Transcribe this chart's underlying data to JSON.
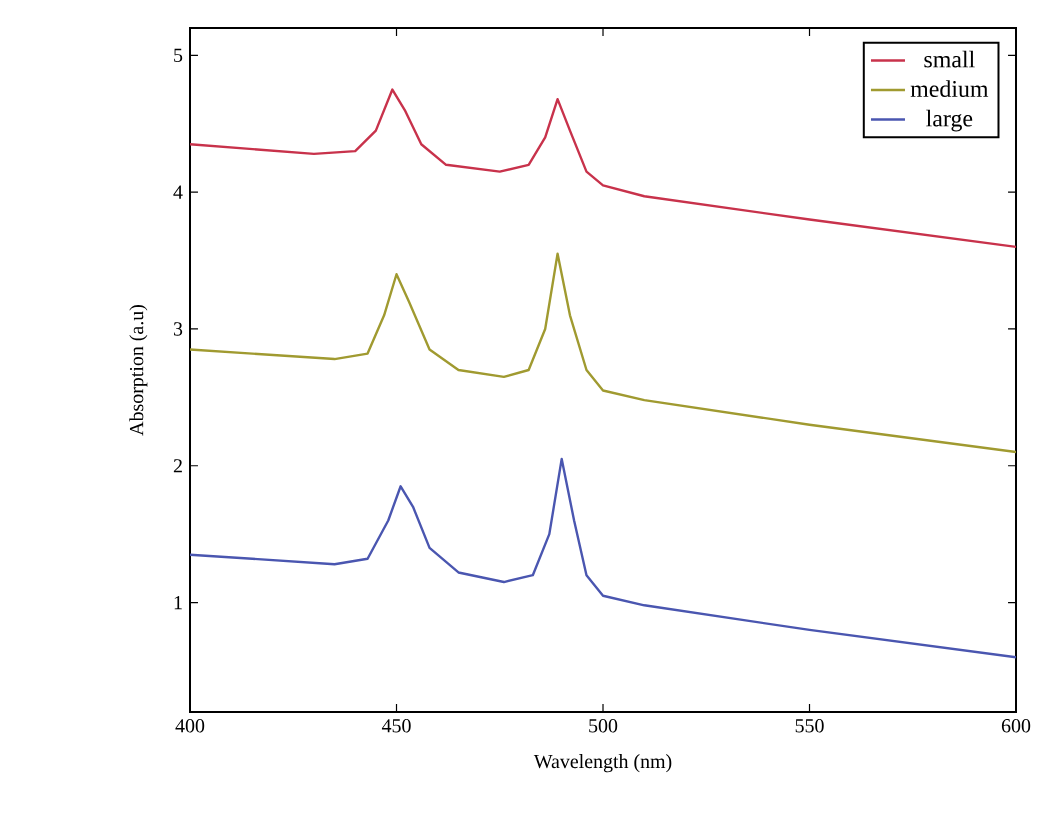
{
  "chart_data": {
    "type": "line",
    "xlabel": "Wavelength  (nm)",
    "ylabel": "Absorption (a.u)",
    "xlim": [
      400,
      600
    ],
    "ylim": [
      0.2,
      5.2
    ],
    "xticks": [
      400,
      450,
      500,
      550,
      600
    ],
    "yticks": [
      1,
      2,
      3,
      4,
      5
    ],
    "legend": "top right",
    "grid": false,
    "marker": "none",
    "line_style": "solid",
    "series": [
      {
        "name": "small",
        "color": "#c8324b",
        "x": [
          400,
          430,
          440,
          445,
          449,
          452,
          456,
          462,
          475,
          482,
          486,
          489,
          492,
          496,
          500,
          510,
          550,
          600
        ],
        "values": [
          4.35,
          4.28,
          4.3,
          4.45,
          4.75,
          4.6,
          4.35,
          4.2,
          4.15,
          4.2,
          4.4,
          4.68,
          4.45,
          4.15,
          4.05,
          3.97,
          3.8,
          3.6
        ]
      },
      {
        "name": "medium",
        "color": "#a09a30",
        "x": [
          400,
          435,
          443,
          447,
          450,
          453,
          458,
          465,
          476,
          482,
          486,
          489,
          492,
          496,
          500,
          510,
          550,
          600
        ],
        "values": [
          2.85,
          2.78,
          2.82,
          3.1,
          3.4,
          3.2,
          2.85,
          2.7,
          2.65,
          2.7,
          3.0,
          3.55,
          3.1,
          2.7,
          2.55,
          2.48,
          2.3,
          2.1
        ]
      },
      {
        "name": "large",
        "color": "#4a56b0",
        "x": [
          400,
          435,
          443,
          448,
          451,
          454,
          458,
          465,
          476,
          483,
          487,
          490,
          493,
          496,
          500,
          510,
          550,
          600
        ],
        "values": [
          1.35,
          1.28,
          1.32,
          1.6,
          1.85,
          1.7,
          1.4,
          1.22,
          1.15,
          1.2,
          1.5,
          2.05,
          1.6,
          1.2,
          1.05,
          0.98,
          0.8,
          0.6
        ]
      }
    ]
  }
}
